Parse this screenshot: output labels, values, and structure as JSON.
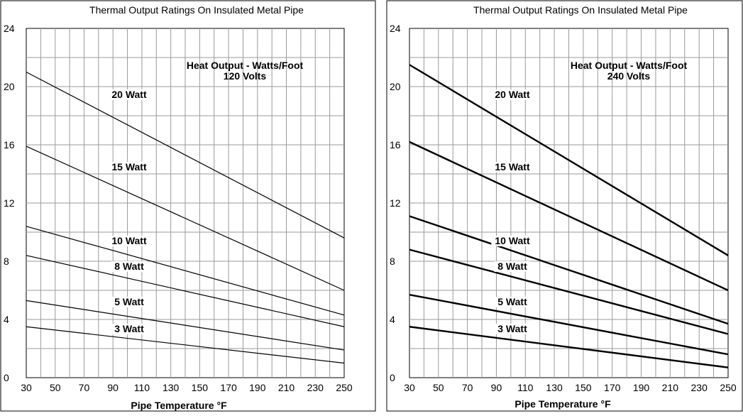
{
  "chart_data": [
    {
      "type": "line",
      "title": "Thermal Output Ratings On Insulated Metal Pipe",
      "xlabel": "Pipe Temperature °F",
      "ylabel": "",
      "xlim": [
        30,
        250
      ],
      "ylim": [
        0,
        24
      ],
      "x_ticks": [
        30,
        50,
        70,
        90,
        110,
        130,
        150,
        170,
        190,
        210,
        230,
        250
      ],
      "y_ticks": [
        0,
        4,
        8,
        12,
        16,
        20,
        24
      ],
      "grid": true,
      "legend": "none",
      "annotation": [
        "Heat Output - Watts/Foot",
        "120 Volts"
      ],
      "x": [
        30,
        250
      ],
      "series": [
        {
          "name": "20 Watt",
          "values": [
            21.0,
            9.6
          ]
        },
        {
          "name": "15 Watt",
          "values": [
            15.9,
            6.0
          ]
        },
        {
          "name": "10 Watt",
          "values": [
            10.4,
            4.3
          ]
        },
        {
          "name": "8 Watt",
          "values": [
            8.4,
            3.5
          ]
        },
        {
          "name": "5 Watt",
          "values": [
            5.3,
            1.9
          ]
        },
        {
          "name": "3 Watt",
          "values": [
            3.5,
            1.0
          ]
        }
      ]
    },
    {
      "type": "line",
      "title": "Thermal Output Ratings On Insulated Metal Pipe",
      "xlabel": "Pipe Temperature °F",
      "ylabel": "",
      "xlim": [
        30,
        250
      ],
      "ylim": [
        0,
        24
      ],
      "x_ticks": [
        30,
        50,
        70,
        90,
        110,
        130,
        150,
        170,
        190,
        210,
        230,
        250
      ],
      "y_ticks": [
        0,
        4,
        8,
        12,
        16,
        20,
        24
      ],
      "grid": true,
      "legend": "none",
      "annotation": [
        "Heat Output - Watts/Foot",
        "240 Volts"
      ],
      "x": [
        30,
        250
      ],
      "series": [
        {
          "name": "20 Watt",
          "values": [
            21.5,
            8.4
          ]
        },
        {
          "name": "15 Watt",
          "values": [
            16.2,
            6.0
          ]
        },
        {
          "name": "10 Watt",
          "values": [
            11.1,
            3.7
          ]
        },
        {
          "name": "8 Watt",
          "values": [
            8.8,
            3.0
          ]
        },
        {
          "name": "5 Watt",
          "values": [
            5.7,
            1.6
          ]
        },
        {
          "name": "3 Watt",
          "values": [
            3.5,
            0.7
          ]
        }
      ]
    }
  ]
}
